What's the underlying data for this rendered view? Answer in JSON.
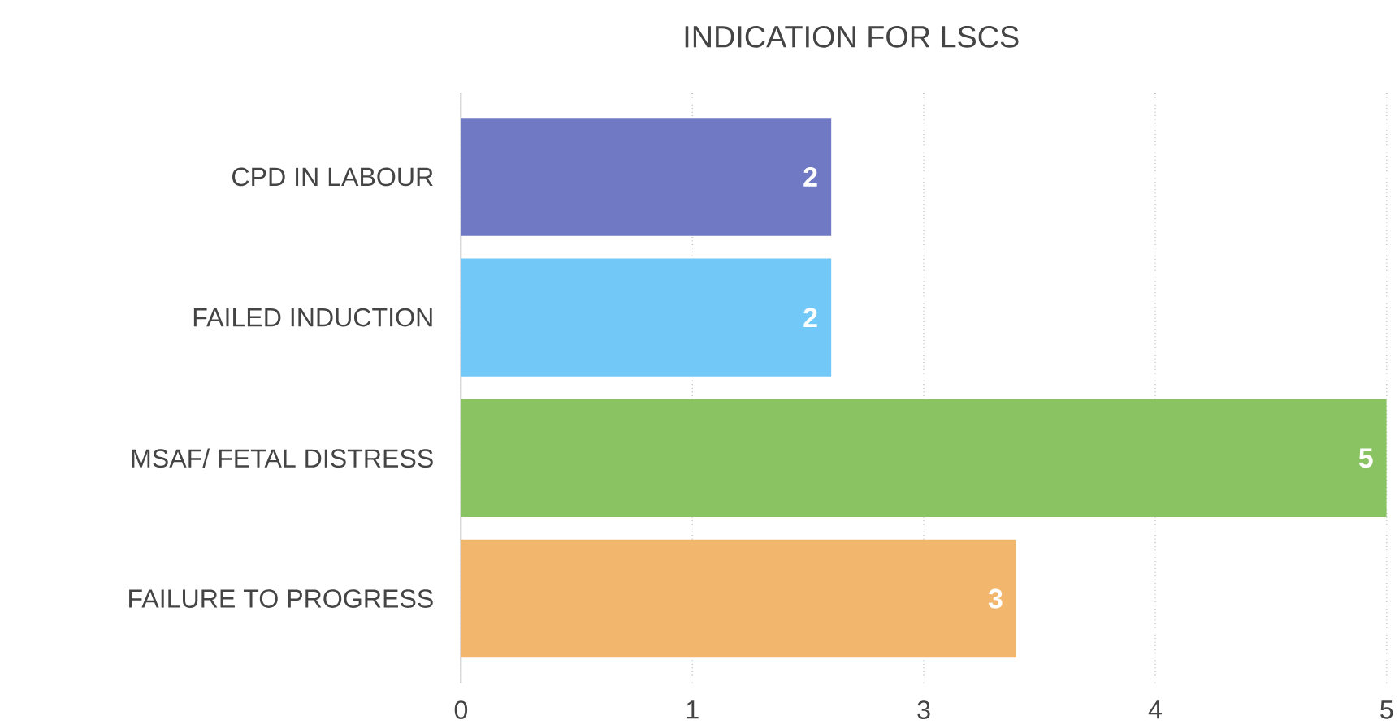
{
  "chart_data": {
    "type": "bar",
    "title": "INDICATION FOR LSCS",
    "orientation": "horizontal",
    "categories": [
      "CPD IN LABOUR",
      "FAILED INDUCTION",
      "MSAF/ FETAL DISTRESS",
      "FAILURE TO PROGRESS"
    ],
    "values": [
      2,
      2,
      5,
      3
    ],
    "colors": [
      "#7079c4",
      "#72c9f8",
      "#8ac462",
      "#f2b76c"
    ],
    "xlim": [
      0,
      5
    ],
    "xticks": [
      0,
      {
        "value": 1.25,
        "label": "1"
      },
      {
        "value": 2.5,
        "label": "3"
      },
      {
        "value": 3.75,
        "label": "4"
      },
      5
    ],
    "grid": "x",
    "data_labels": true
  }
}
